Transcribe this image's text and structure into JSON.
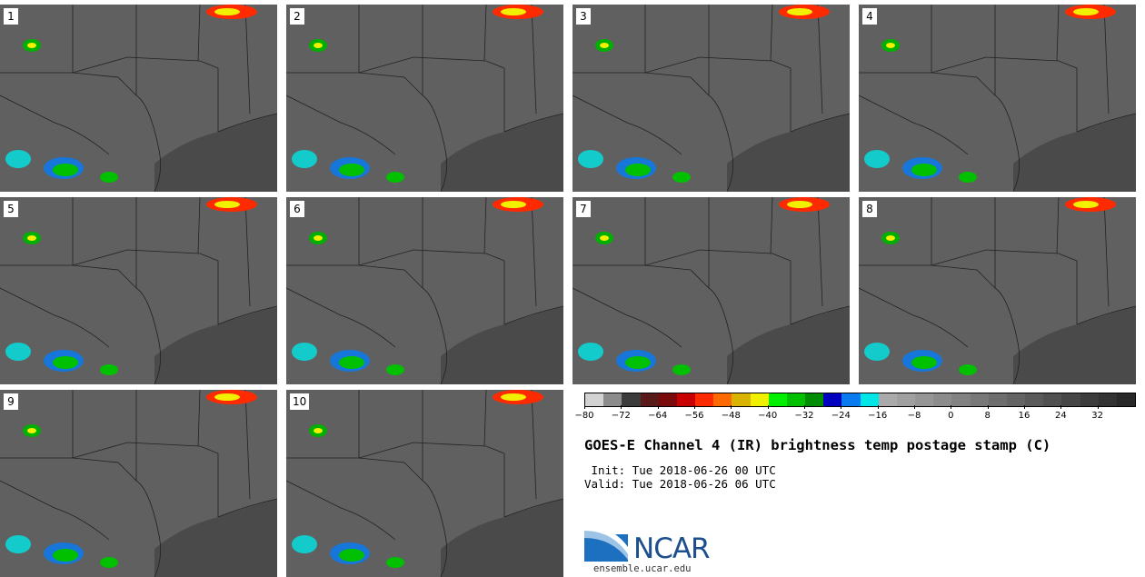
{
  "panels": [
    "1",
    "2",
    "3",
    "4",
    "5",
    "6",
    "7",
    "8",
    "9",
    "10"
  ],
  "colorbar": {
    "colors": [
      "#d2d2d2",
      "#8c8c8c",
      "#3c3c3c",
      "#5a1a1a",
      "#7a0a0a",
      "#c80000",
      "#ff2a00",
      "#ff6a00",
      "#d8b400",
      "#f0f000",
      "#00f000",
      "#00c000",
      "#008c00",
      "#0000c0",
      "#0a7af0",
      "#00e6e6",
      "#aaaaaa",
      "#a0a0a0",
      "#969696",
      "#8c8c8c",
      "#828282",
      "#787878",
      "#6e6e6e",
      "#646464",
      "#5a5a5a",
      "#505050",
      "#464646",
      "#3c3c3c",
      "#323232",
      "#282828"
    ],
    "ticks": [
      "-80",
      "-72",
      "-64",
      "-56",
      "-48",
      "-40",
      "-32",
      "-24",
      "-16",
      "-8",
      "0",
      "8",
      "16",
      "24",
      "32"
    ]
  },
  "title": "GOES-E Channel 4 (IR) brightness temp postage stamp (C)",
  "init_line": " Init: Tue 2018-06-26 00 UTC",
  "valid_line": "Valid: Tue 2018-06-26 06 UTC",
  "logo": {
    "text": "NCAR",
    "site": "ensemble.ucar.edu"
  }
}
